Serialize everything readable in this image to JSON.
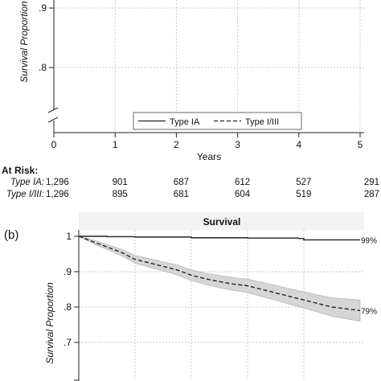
{
  "colors": {
    "line": "#222222",
    "grid": "#c8c8c8",
    "ci_band": "#d6d6d6",
    "ci_edge": "#a8a8a8"
  },
  "top_panel": {
    "ylabel": "Survival Proportion",
    "xlabel": "Years",
    "y_ticks": [
      ".9",
      ".8"
    ],
    "x_ticks": [
      "0",
      "1",
      "2",
      "3",
      "4",
      "5"
    ],
    "legend": {
      "position": "bottom-right",
      "entries": [
        {
          "label": "Type IA",
          "style": "solid"
        },
        {
          "label": "Type I/III",
          "style": "dashed"
        }
      ]
    },
    "at_risk": {
      "title": "At Risk:",
      "rows": [
        {
          "label": "Type IA:",
          "values": [
            "1,296",
            "901",
            "687",
            "612",
            "527",
            "291"
          ]
        },
        {
          "label": "Type I/III:",
          "values": [
            "1,296",
            "895",
            "681",
            "604",
            "519",
            "287"
          ]
        }
      ]
    }
  },
  "bottom_panel": {
    "panel_label": "(b)",
    "title": "Survival",
    "ylabel": "Survival Proportion",
    "y_ticks": [
      "1",
      ".9",
      ".8",
      ".7"
    ],
    "end_labels": {
      "type_ia": "99%",
      "type_i_iii": "79%"
    }
  },
  "chart_data": [
    {
      "type": "line",
      "title": "",
      "xlabel": "Years",
      "ylabel": "Survival Proportion",
      "x_ticks": [
        0,
        1,
        2,
        3,
        4,
        5
      ],
      "xlim": [
        0,
        5
      ],
      "ylim": [
        0.75,
        0.95
      ],
      "grid": true,
      "legend": "bottom-right",
      "series": []
    },
    {
      "type": "line",
      "title": "Survival",
      "xlabel": "",
      "ylabel": "Survival Proportion",
      "xlim": [
        0,
        5
      ],
      "ylim": [
        0.6,
        1.01
      ],
      "y_ticks": [
        1,
        0.9,
        0.8,
        0.7
      ],
      "grid": true,
      "series": [
        {
          "name": "Type IA",
          "style": "solid",
          "x": [
            0,
            0.5,
            1,
            2,
            3,
            3.9,
            4.0,
            4.5,
            5
          ],
          "y": [
            1.0,
            0.999,
            0.998,
            0.996,
            0.995,
            0.994,
            0.99,
            0.99,
            0.99
          ]
        },
        {
          "name": "Type I/III",
          "style": "dashed",
          "x": [
            0,
            0.25,
            0.5,
            0.75,
            1.0,
            1.25,
            1.5,
            1.75,
            2.0,
            2.25,
            2.5,
            2.75,
            3.0,
            3.25,
            3.5,
            3.75,
            4.0,
            4.25,
            4.5,
            4.75,
            5.0
          ],
          "y": [
            1.0,
            0.985,
            0.97,
            0.955,
            0.935,
            0.925,
            0.915,
            0.905,
            0.89,
            0.88,
            0.872,
            0.865,
            0.86,
            0.85,
            0.84,
            0.83,
            0.82,
            0.81,
            0.8,
            0.795,
            0.79
          ],
          "ci_lower": [
            1.0,
            0.98,
            0.963,
            0.946,
            0.924,
            0.913,
            0.902,
            0.891,
            0.875,
            0.864,
            0.855,
            0.847,
            0.841,
            0.83,
            0.819,
            0.808,
            0.797,
            0.786,
            0.774,
            0.767,
            0.76
          ],
          "ci_upper": [
            1.0,
            0.99,
            0.977,
            0.964,
            0.946,
            0.937,
            0.928,
            0.919,
            0.905,
            0.896,
            0.889,
            0.883,
            0.879,
            0.87,
            0.861,
            0.852,
            0.843,
            0.834,
            0.826,
            0.823,
            0.82
          ]
        }
      ]
    }
  ]
}
